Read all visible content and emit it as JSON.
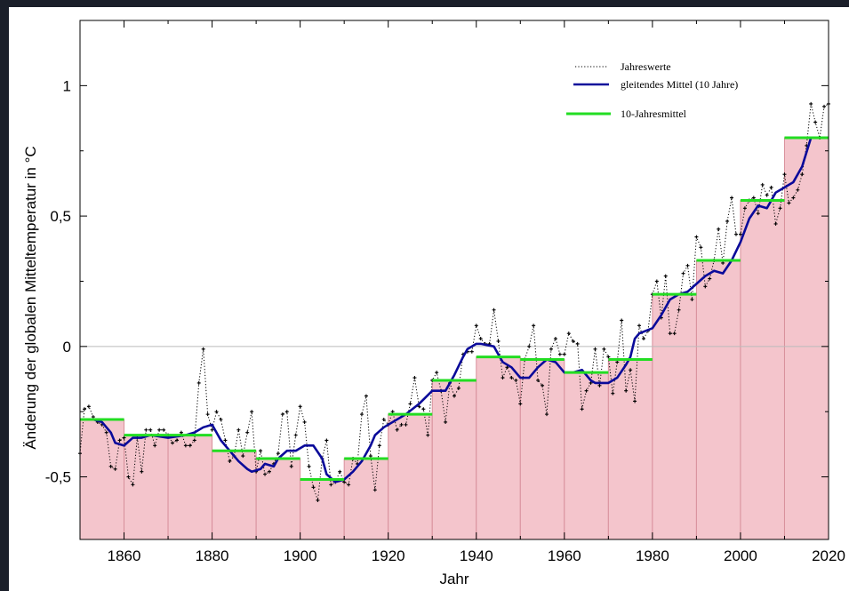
{
  "chart_data": {
    "type": "line",
    "xlabel": "Jahr",
    "ylabel": "Änderung der globalen Mitteltemperatur in °C",
    "xlim": [
      1850,
      2020
    ],
    "ylim": [
      -0.74,
      1.25
    ],
    "x_ticks": [
      1860,
      1880,
      1900,
      1920,
      1940,
      1960,
      1980,
      2000,
      2020
    ],
    "x_tick_labels": [
      "1860",
      "1880",
      "1900",
      "1920",
      "1940",
      "1960",
      "1980",
      "2000",
      "2020"
    ],
    "y_ticks": [
      -0.5,
      0,
      0.5,
      1
    ],
    "y_tick_labels": [
      "-0,5",
      "0",
      "0,5",
      "1"
    ],
    "grid": false,
    "zero_line": true,
    "legend": {
      "position": "top-right",
      "entries": [
        "Jahreswerte",
        "gleitendes Mittel (10 Jahre)",
        "10-Jahresmittel"
      ]
    },
    "colors": {
      "annual": "#000000",
      "moving_average": "#0a0a9a",
      "decade_mean": "#22dd22",
      "decade_fill": "#f4c5cc",
      "decade_fill_edge": "#d8909c",
      "zero_line": "#bbbbbb"
    },
    "series": [
      {
        "name": "Jahreswerte",
        "x": [
          1850,
          1851,
          1852,
          1853,
          1854,
          1855,
          1856,
          1857,
          1858,
          1859,
          1860,
          1861,
          1862,
          1863,
          1864,
          1865,
          1866,
          1867,
          1868,
          1869,
          1870,
          1871,
          1872,
          1873,
          1874,
          1875,
          1876,
          1877,
          1878,
          1879,
          1880,
          1881,
          1882,
          1883,
          1884,
          1885,
          1886,
          1887,
          1888,
          1889,
          1890,
          1891,
          1892,
          1893,
          1894,
          1895,
          1896,
          1897,
          1898,
          1899,
          1900,
          1901,
          1902,
          1903,
          1904,
          1905,
          1906,
          1907,
          1908,
          1909,
          1910,
          1911,
          1912,
          1913,
          1914,
          1915,
          1916,
          1917,
          1918,
          1919,
          1920,
          1921,
          1922,
          1923,
          1924,
          1925,
          1926,
          1927,
          1928,
          1929,
          1930,
          1931,
          1932,
          1933,
          1934,
          1935,
          1936,
          1937,
          1938,
          1939,
          1940,
          1941,
          1942,
          1943,
          1944,
          1945,
          1946,
          1947,
          1948,
          1949,
          1950,
          1951,
          1952,
          1953,
          1954,
          1955,
          1956,
          1957,
          1958,
          1959,
          1960,
          1961,
          1962,
          1963,
          1964,
          1965,
          1966,
          1967,
          1968,
          1969,
          1970,
          1971,
          1972,
          1973,
          1974,
          1975,
          1976,
          1977,
          1978,
          1979,
          1980,
          1981,
          1982,
          1983,
          1984,
          1985,
          1986,
          1987,
          1988,
          1989,
          1990,
          1991,
          1992,
          1993,
          1994,
          1995,
          1996,
          1997,
          1998,
          1999,
          2000,
          2001,
          2002,
          2003,
          2004,
          2005,
          2006,
          2007,
          2008,
          2009,
          2010,
          2011,
          2012,
          2013,
          2014,
          2015,
          2016,
          2017,
          2018,
          2019,
          2020
        ],
        "values": [
          -0.41,
          -0.24,
          -0.23,
          -0.27,
          -0.29,
          -0.3,
          -0.33,
          -0.46,
          -0.47,
          -0.36,
          -0.35,
          -0.5,
          -0.53,
          -0.35,
          -0.48,
          -0.32,
          -0.32,
          -0.38,
          -0.32,
          -0.32,
          -0.34,
          -0.37,
          -0.36,
          -0.33,
          -0.38,
          -0.38,
          -0.36,
          -0.14,
          -0.01,
          -0.26,
          -0.32,
          -0.25,
          -0.28,
          -0.36,
          -0.44,
          -0.42,
          -0.32,
          -0.42,
          -0.33,
          -0.25,
          -0.48,
          -0.4,
          -0.49,
          -0.48,
          -0.45,
          -0.41,
          -0.26,
          -0.25,
          -0.46,
          -0.34,
          -0.23,
          -0.29,
          -0.46,
          -0.54,
          -0.59,
          -0.43,
          -0.36,
          -0.53,
          -0.52,
          -0.48,
          -0.52,
          -0.53,
          -0.43,
          -0.45,
          -0.26,
          -0.19,
          -0.42,
          -0.55,
          -0.38,
          -0.28,
          -0.3,
          -0.25,
          -0.32,
          -0.3,
          -0.3,
          -0.22,
          -0.12,
          -0.23,
          -0.24,
          -0.34,
          -0.13,
          -0.1,
          -0.17,
          -0.29,
          -0.14,
          -0.19,
          -0.16,
          -0.03,
          -0.02,
          -0.02,
          0.08,
          0.03,
          0.01,
          0.01,
          0.14,
          0.02,
          -0.12,
          -0.08,
          -0.12,
          -0.13,
          -0.22,
          -0.05,
          0.0,
          0.08,
          -0.13,
          -0.15,
          -0.26,
          -0.01,
          0.03,
          -0.03,
          -0.03,
          0.05,
          0.02,
          0.01,
          -0.24,
          -0.17,
          -0.14,
          -0.01,
          -0.15,
          -0.01,
          -0.04,
          -0.18,
          -0.06,
          0.1,
          -0.17,
          -0.09,
          -0.21,
          0.08,
          0.03,
          0.06,
          0.2,
          0.25,
          0.11,
          0.27,
          0.05,
          0.05,
          0.14,
          0.28,
          0.31,
          0.18,
          0.42,
          0.38,
          0.23,
          0.26,
          0.33,
          0.45,
          0.32,
          0.48,
          0.57,
          0.43,
          0.43,
          0.53,
          0.56,
          0.57,
          0.51,
          0.62,
          0.58,
          0.61,
          0.47,
          0.53,
          0.66,
          0.55,
          0.57,
          0.6,
          0.66,
          0.77,
          0.93,
          0.86,
          0.8,
          0.92,
          0.93
        ]
      },
      {
        "name": "gleitendes Mittel (10 Jahre)",
        "x": [
          1850,
          1853,
          1855,
          1857,
          1858,
          1860,
          1862,
          1864,
          1866,
          1870,
          1874,
          1876,
          1878,
          1880,
          1882,
          1884,
          1886,
          1888,
          1889,
          1891,
          1892,
          1894,
          1895,
          1897,
          1899,
          1901,
          1903,
          1905,
          1906,
          1908,
          1910,
          1912,
          1914,
          1916,
          1917,
          1919,
          1921,
          1924,
          1927,
          1930,
          1933,
          1935,
          1937,
          1938,
          1940,
          1941,
          1944,
          1946,
          1948,
          1950,
          1952,
          1954,
          1956,
          1958,
          1960,
          1962,
          1964,
          1966,
          1967,
          1970,
          1972,
          1974,
          1975,
          1976,
          1977,
          1980,
          1982,
          1984,
          1986,
          1988,
          1990,
          1992,
          1994,
          1996,
          1998,
          2000,
          2002,
          2004,
          2006,
          2008,
          2010,
          2012,
          2014,
          2016
        ],
        "values": [
          -0.28,
          -0.28,
          -0.29,
          -0.33,
          -0.37,
          -0.38,
          -0.35,
          -0.35,
          -0.34,
          -0.35,
          -0.34,
          -0.33,
          -0.31,
          -0.3,
          -0.36,
          -0.4,
          -0.44,
          -0.47,
          -0.48,
          -0.47,
          -0.45,
          -0.46,
          -0.43,
          -0.4,
          -0.4,
          -0.38,
          -0.38,
          -0.43,
          -0.49,
          -0.52,
          -0.51,
          -0.48,
          -0.44,
          -0.38,
          -0.34,
          -0.31,
          -0.29,
          -0.26,
          -0.22,
          -0.17,
          -0.17,
          -0.11,
          -0.04,
          -0.01,
          0.01,
          0.01,
          0.0,
          -0.06,
          -0.08,
          -0.12,
          -0.12,
          -0.08,
          -0.05,
          -0.06,
          -0.1,
          -0.1,
          -0.09,
          -0.13,
          -0.14,
          -0.14,
          -0.12,
          -0.07,
          -0.04,
          0.03,
          0.05,
          0.07,
          0.12,
          0.18,
          0.2,
          0.21,
          0.24,
          0.27,
          0.29,
          0.28,
          0.33,
          0.4,
          0.49,
          0.54,
          0.53,
          0.59,
          0.61,
          0.63,
          0.69,
          0.8
        ]
      },
      {
        "name": "10-Jahresmittel",
        "x_start": [
          1850,
          1860,
          1870,
          1880,
          1890,
          1900,
          1910,
          1920,
          1930,
          1940,
          1950,
          1960,
          1970,
          1980,
          1990,
          2000,
          2010
        ],
        "x_end": [
          1860,
          1870,
          1880,
          1890,
          1900,
          1910,
          1920,
          1930,
          1940,
          1950,
          1960,
          1970,
          1980,
          1990,
          2000,
          2010,
          2020
        ],
        "values": [
          -0.28,
          -0.34,
          -0.34,
          -0.4,
          -0.43,
          -0.51,
          -0.43,
          -0.26,
          -0.13,
          -0.04,
          -0.05,
          -0.1,
          -0.05,
          0.2,
          0.33,
          0.56,
          0.8
        ]
      }
    ]
  }
}
